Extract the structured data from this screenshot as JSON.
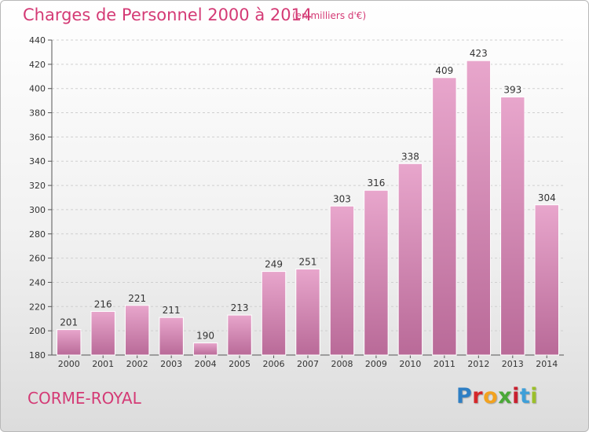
{
  "header": {
    "title": "Charges de Personnel 2000 à 2014",
    "subtitle": "(en milliers d'€)"
  },
  "footer": {
    "town": "CORME-ROYAL",
    "logo_letters": [
      "P",
      "r",
      "o",
      "x",
      "i",
      "t",
      "i"
    ]
  },
  "colors": {
    "title": "#d43a75",
    "bar_light": "#e8a6cc",
    "bar_dark": "#b96a98",
    "bar_edge": "#ffffff",
    "logo": [
      "#2f7fc4",
      "#d4272a",
      "#f2a21f",
      "#4aa837",
      "#c8202f",
      "#3f9fd8",
      "#9bbf2a"
    ]
  },
  "chart_data": {
    "type": "bar",
    "title": "Charges de Personnel 2000 à 2014",
    "subtitle": "(en milliers d'€)",
    "categories": [
      "2000",
      "2001",
      "2002",
      "2003",
      "2004",
      "2005",
      "2006",
      "2007",
      "2008",
      "2009",
      "2010",
      "2011",
      "2012",
      "2013",
      "2014"
    ],
    "values": [
      201,
      216,
      221,
      211,
      190,
      213,
      249,
      251,
      303,
      316,
      338,
      409,
      423,
      393,
      304
    ],
    "ylim": [
      180,
      440
    ],
    "yticks": [
      180,
      200,
      220,
      240,
      260,
      280,
      300,
      320,
      340,
      360,
      380,
      400,
      420,
      440
    ],
    "grid": true,
    "xlabel": "",
    "ylabel": ""
  }
}
